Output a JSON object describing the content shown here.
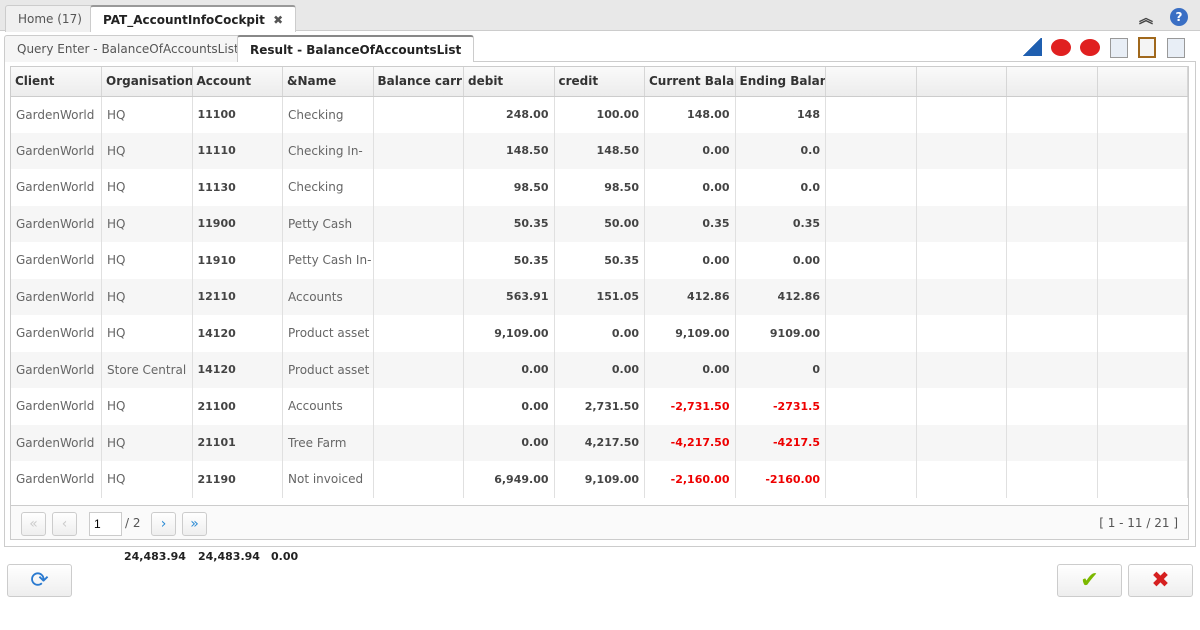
{
  "tabs": [
    {
      "label": "Home (17)"
    },
    {
      "label": "PAT_AccountInfoCockpit",
      "close": "✖"
    }
  ],
  "subtabs": [
    {
      "label": "Query Enter - BalanceOfAccountsList"
    },
    {
      "label": "Result - BalanceOfAccountsList"
    }
  ],
  "columns": [
    "Client",
    "Organisation",
    "Account",
    "&Name",
    "Balance carried",
    "debit",
    "credit",
    "Current Balance",
    "Ending Balance",
    "",
    "",
    "",
    ""
  ],
  "rows": [
    [
      "GardenWorld",
      "HQ",
      "11100",
      "Checking",
      "",
      "248.00",
      "100.00",
      "148.00",
      "148"
    ],
    [
      "GardenWorld",
      "HQ",
      "11110",
      "Checking In-",
      "",
      "148.50",
      "148.50",
      "0.00",
      "0.0"
    ],
    [
      "GardenWorld",
      "HQ",
      "11130",
      "Checking",
      "",
      "98.50",
      "98.50",
      "0.00",
      "0.0"
    ],
    [
      "GardenWorld",
      "HQ",
      "11900",
      "Petty Cash",
      "",
      "50.35",
      "50.00",
      "0.35",
      "0.35"
    ],
    [
      "GardenWorld",
      "HQ",
      "11910",
      "Petty Cash In-",
      "",
      "50.35",
      "50.35",
      "0.00",
      "0.00"
    ],
    [
      "GardenWorld",
      "HQ",
      "12110",
      "Accounts",
      "",
      "563.91",
      "151.05",
      "412.86",
      "412.86"
    ],
    [
      "GardenWorld",
      "HQ",
      "14120",
      "Product asset",
      "",
      "9,109.00",
      "0.00",
      "9,109.00",
      "9109.00"
    ],
    [
      "GardenWorld",
      "Store Central",
      "14120",
      "Product asset",
      "",
      "0.00",
      "0.00",
      "0.00",
      "0"
    ],
    [
      "GardenWorld",
      "HQ",
      "21100",
      "Accounts",
      "",
      "0.00",
      "2,731.50",
      "-2,731.50",
      "-2731.5"
    ],
    [
      "GardenWorld",
      "HQ",
      "21101",
      "Tree Farm",
      "",
      "0.00",
      "4,217.50",
      "-4,217.50",
      "-4217.5"
    ],
    [
      "GardenWorld",
      "HQ",
      "21190",
      "Not invoiced",
      "",
      "6,949.00",
      "9,109.00",
      "-2,160.00",
      "-2160.00"
    ]
  ],
  "pager": {
    "page": "1",
    "of": "/ 2",
    "range": "[ 1 - 11 / 21 ]"
  },
  "totals": {
    "debit": "24,483.94",
    "credit": "24,483.94",
    "balance": "0.00"
  },
  "colors": {
    "negative": "#e00000",
    "accent": "#2a8ad4"
  }
}
